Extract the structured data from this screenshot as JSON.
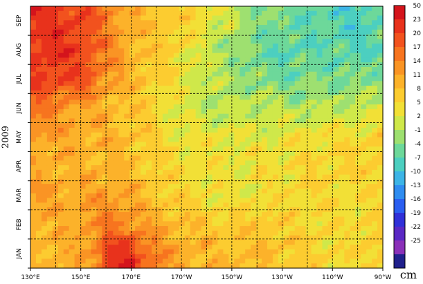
{
  "chart_data": {
    "type": "heatmap",
    "title": "",
    "xlabel": "",
    "ylabel": "2009",
    "unit": "cm",
    "x_ticks": [
      "130°E",
      "150°E",
      "170°E",
      "170°W",
      "150°W",
      "130°W",
      "110°W",
      "90°W"
    ],
    "y_ticks": [
      "JAN",
      "FEB",
      "MAR",
      "APR",
      "MAY",
      "JUN",
      "JUL",
      "AUG",
      "SEP"
    ],
    "xlim": [
      130,
      270
    ],
    "colorbar": {
      "labels": [
        "50",
        "23",
        "20",
        "17",
        "14",
        "11",
        "8",
        "5",
        "2",
        "-1",
        "-4",
        "-7",
        "-10",
        "-13",
        "-16",
        "-19",
        "-22",
        "-25"
      ],
      "colors": [
        "#d4141c",
        "#e8321c",
        "#f2521e",
        "#f7741f",
        "#fa9424",
        "#fcb22a",
        "#fccc30",
        "#f2e036",
        "#cfe84a",
        "#9ee070",
        "#6dd89a",
        "#4ccfc0",
        "#3cb4e6",
        "#2f8cf0",
        "#2a5ef0",
        "#3030d8",
        "#5a28c4",
        "#8a30b8",
        "#20208c"
      ]
    },
    "grid": true,
    "months": [
      "JAN",
      "FEB",
      "MAR",
      "APR",
      "MAY",
      "JUN",
      "JUL",
      "AUG",
      "SEP"
    ],
    "month_profiles": {
      "JAN": [
        22,
        21,
        20,
        19,
        14,
        10,
        8,
        7,
        5,
        3,
        1,
        -2,
        -4,
        -5,
        -6,
        -7,
        -8,
        -8,
        -7
      ],
      "FEB": [
        20,
        22,
        21,
        18,
        14,
        10,
        7,
        6,
        3,
        0,
        -2,
        -4,
        -6,
        -7,
        -7,
        -6,
        -7,
        -7,
        -6
      ],
      "MAR": [
        21,
        20,
        20,
        18,
        12,
        9,
        7,
        5,
        2,
        0,
        -1,
        -3,
        -4,
        -5,
        -5,
        -4,
        -5,
        -4,
        -3
      ],
      "APR": [
        16,
        14,
        12,
        10,
        9,
        8,
        6,
        3,
        1,
        -1,
        -1,
        0,
        0,
        -1,
        -1,
        -1,
        0,
        0,
        1
      ],
      "MAY": [
        12,
        11,
        10,
        10,
        9,
        8,
        6,
        4,
        3,
        3,
        3,
        2,
        2,
        3,
        3,
        4,
        4,
        4,
        6
      ],
      "JUN": [
        10,
        10,
        9,
        9,
        9,
        8,
        6,
        5,
        4,
        3,
        3,
        3,
        4,
        4,
        5,
        5,
        5,
        6,
        6
      ],
      "JUL": [
        11,
        11,
        10,
        11,
        12,
        10,
        8,
        6,
        5,
        4,
        3,
        3,
        4,
        4,
        5,
        5,
        4,
        4,
        5
      ],
      "AUG": [
        10,
        9,
        9,
        12,
        15,
        13,
        11,
        9,
        8,
        7,
        6,
        7,
        7,
        6,
        5,
        4,
        4,
        5,
        6
      ],
      "SEP": [
        8,
        9,
        10,
        11,
        21,
        22,
        16,
        12,
        10,
        9,
        8,
        8,
        8,
        7,
        6,
        5,
        4,
        5,
        6
      ]
    }
  }
}
